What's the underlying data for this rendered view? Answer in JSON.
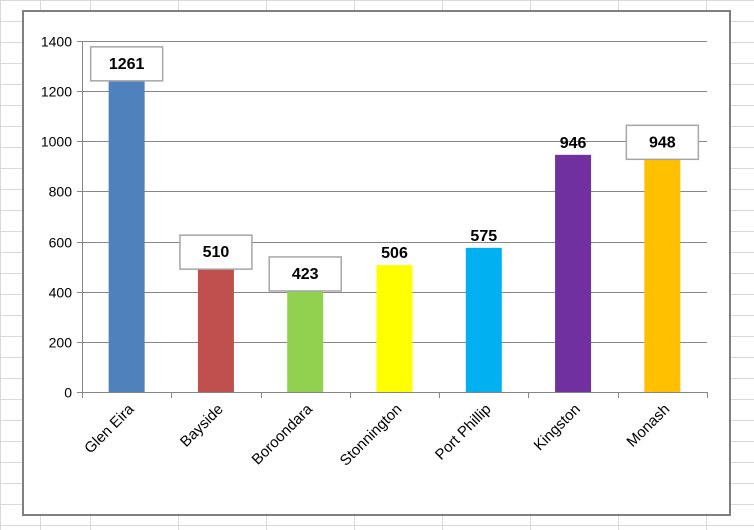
{
  "chart_data": {
    "type": "bar",
    "title": "",
    "xlabel": "",
    "ylabel": "",
    "categories": [
      "Glen Eira",
      "Bayside",
      "Boroondara",
      "Stonnington",
      "Port Phillip",
      "Kingston",
      "Monash"
    ],
    "values": [
      1261,
      510,
      423,
      506,
      575,
      946,
      948
    ],
    "value_labels": [
      "1261",
      "510",
      "423",
      "506",
      "575",
      "946",
      "948"
    ],
    "boxed_labels": [
      true,
      true,
      true,
      false,
      false,
      false,
      true
    ],
    "colors": [
      "#4f81bd",
      "#c0504d",
      "#92d050",
      "#ffff00",
      "#00b0f0",
      "#7030a0",
      "#ffc000"
    ],
    "ylim": [
      0,
      1400
    ],
    "yticks": [
      0,
      200,
      400,
      600,
      800,
      1000,
      1200,
      1400
    ],
    "ytick_labels": [
      "0",
      "200",
      "400",
      "600",
      "800",
      "1000",
      "1200",
      "1400"
    ],
    "grid": true,
    "legend": "none"
  }
}
